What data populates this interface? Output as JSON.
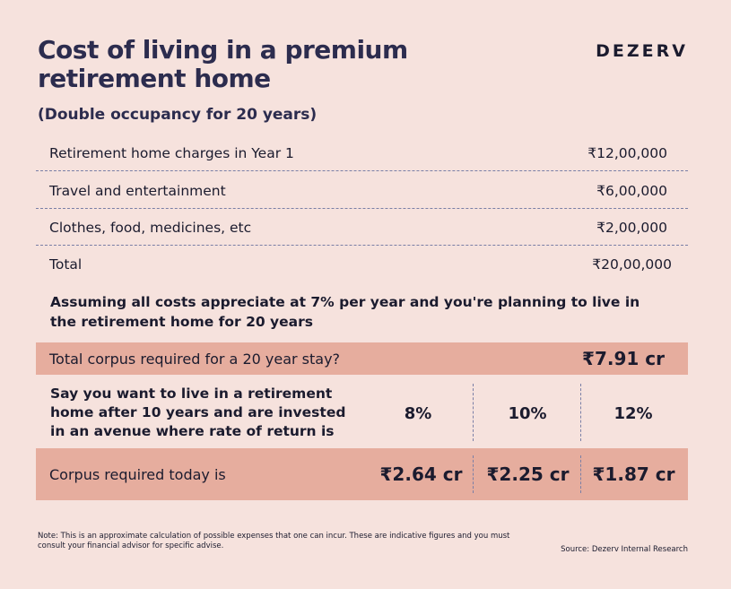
{
  "title_lines": [
    "Cost of living in a premium",
    "retirement home"
  ],
  "brand": "DEZERV",
  "subtitle": "(Double occupancy for 20 years)",
  "expenses": [
    {
      "label": "Retirement home charges in Year 1",
      "value": "₹12,00,000"
    },
    {
      "label": "Travel and entertainment",
      "value": "₹6,00,000"
    },
    {
      "label": "Clothes, food, medicines, etc",
      "value": "₹2,00,000"
    },
    {
      "label": "Total",
      "value": "₹20,00,000"
    }
  ],
  "assumption": "Assuming all costs appreciate at 7% per year and you're planning to live in the retirement home for 20 years",
  "corpus_total": {
    "label": "Total corpus required for a 20 year stay?",
    "value": "₹7.91 cr"
  },
  "rate_question": "Say you want to live in a retirement home after 10 years and are invested in an avenue where rate of return is",
  "rates": [
    "8%",
    "10%",
    "12%"
  ],
  "corpus_today": {
    "label": "Corpus required today is",
    "values": [
      "₹2.64 cr",
      "₹2.25 cr",
      "₹1.87 cr"
    ]
  },
  "note": "Note: This is an approximate calculation of possible expenses that one can incur. These are indicative figures and you must consult your financial advisor for specific advise.",
  "source": "Source: Dezerv Internal Research"
}
